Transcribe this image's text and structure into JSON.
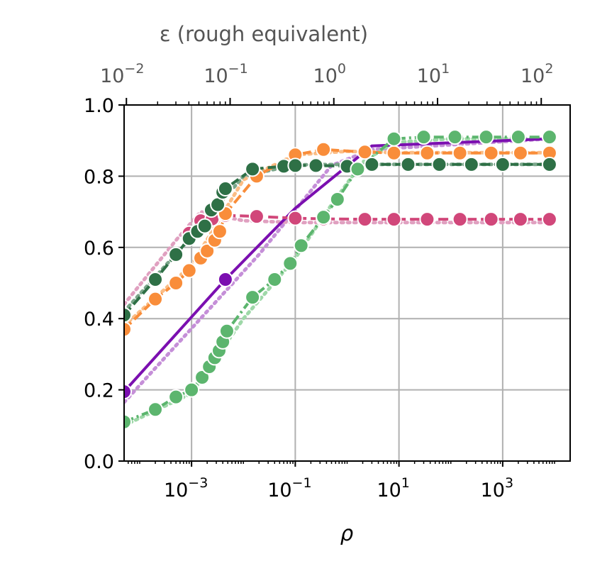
{
  "chart_data": {
    "type": "line",
    "xscale": "log",
    "xlabel": "ρ",
    "xlim": [
      5e-05,
      20000
    ],
    "x_ticks": [
      {
        "value": 0.001,
        "base": "10",
        "exp": "−3"
      },
      {
        "value": 0.1,
        "base": "10",
        "exp": "−1"
      },
      {
        "value": 10,
        "base": "10",
        "exp": "1"
      },
      {
        "value": 1000,
        "base": "10",
        "exp": "3"
      }
    ],
    "ylabel": "",
    "ylim": [
      0.0,
      1.0
    ],
    "y_ticks": [
      "0.0",
      "0.2",
      "0.4",
      "0.6",
      "0.8",
      "1.0"
    ],
    "grid": true,
    "top_axis": {
      "label": "ε (rough equivalent)",
      "xscale": "log",
      "ticks": [
        {
          "value": 0.01,
          "base": "10",
          "exp": "−2"
        },
        {
          "value": 0.1,
          "base": "10",
          "exp": "−1"
        },
        {
          "value": 1,
          "base": "10",
          "exp": "0"
        },
        {
          "value": 10,
          "base": "10",
          "exp": "1"
        },
        {
          "value": 100,
          "base": "10",
          "exp": "2"
        }
      ],
      "xlim": [
        0.0095,
        190
      ]
    },
    "series": [
      {
        "color": "#7b0fb0",
        "dash": "solid",
        "x": [
          5e-05,
          0.0045,
          0.1,
          3.0,
          8000
        ],
        "y": [
          0.195,
          0.51,
          0.71,
          0.885,
          0.905
        ],
        "marker_x": [
          5e-05,
          0.0045
        ],
        "marker_y": [
          0.195,
          0.51
        ],
        "ref_x": [
          5e-05,
          0.02,
          0.5,
          3.0,
          8000
        ],
        "ref_y": [
          0.165,
          0.58,
          0.83,
          0.875,
          0.905
        ],
        "ref_color": "#c58fd8"
      },
      {
        "color": "#d1477a",
        "dash": "dashed",
        "x": [
          0.0009,
          0.0015,
          0.0025,
          0.0045,
          0.018,
          0.1,
          0.35,
          2.2,
          8,
          35,
          150,
          600,
          2200,
          8000
        ],
        "y": [
          0.64,
          0.675,
          0.68,
          0.69,
          0.687,
          0.682,
          0.68,
          0.679,
          0.679,
          0.679,
          0.679,
          0.679,
          0.679,
          0.679
        ],
        "ref_x": [
          5e-05,
          0.0005,
          0.0015,
          0.01,
          0.1,
          1,
          10,
          100,
          1000,
          8000
        ],
        "ref_y": [
          0.44,
          0.62,
          0.7,
          0.675,
          0.67,
          0.67,
          0.67,
          0.67,
          0.67,
          0.67
        ],
        "ref_color": "#e0a0c0"
      },
      {
        "color": "#f98d3a",
        "dash": "dashed",
        "x": [
          5e-05,
          0.0002,
          0.0005,
          0.0009,
          0.0015,
          0.002,
          0.0028,
          0.0035,
          0.0045,
          0.018,
          0.1,
          0.35,
          2.2,
          8,
          35,
          150,
          600,
          2200,
          8000
        ],
        "y": [
          0.37,
          0.455,
          0.5,
          0.535,
          0.57,
          0.59,
          0.62,
          0.645,
          0.695,
          0.8,
          0.86,
          0.875,
          0.868,
          0.865,
          0.865,
          0.865,
          0.865,
          0.865,
          0.865
        ],
        "ref_x": [
          5e-05,
          0.001,
          0.01,
          0.1,
          1,
          10,
          100,
          1000,
          8000
        ],
        "ref_y": [
          0.38,
          0.55,
          0.79,
          0.86,
          0.87,
          0.866,
          0.866,
          0.866,
          0.866
        ],
        "ref_color": "#fbbd85"
      },
      {
        "color": "#2e7046",
        "dash": "dashed",
        "x": [
          5e-05,
          0.0002,
          0.0005,
          0.0009,
          0.0013,
          0.0018,
          0.0024,
          0.0032,
          0.004,
          0.0045,
          0.015,
          0.06,
          0.1,
          0.25,
          1.0,
          3.0,
          15,
          60,
          250,
          1000,
          8000
        ],
        "y": [
          0.41,
          0.51,
          0.58,
          0.625,
          0.645,
          0.66,
          0.705,
          0.72,
          0.755,
          0.765,
          0.82,
          0.828,
          0.83,
          0.83,
          0.828,
          0.833,
          0.833,
          0.833,
          0.833,
          0.833,
          0.833
        ],
        "ref_x": [
          5e-05,
          0.001,
          0.01,
          0.1,
          1,
          10,
          100,
          1000,
          8000
        ],
        "ref_y": [
          0.42,
          0.63,
          0.8,
          0.832,
          0.833,
          0.833,
          0.833,
          0.833,
          0.833
        ],
        "ref_color": "#7aa68a"
      },
      {
        "color": "#5cb56e",
        "dash": "dashdot",
        "x": [
          5e-05,
          0.0002,
          0.0005,
          0.001,
          0.0016,
          0.0022,
          0.0028,
          0.0034,
          0.004,
          0.0048,
          0.015,
          0.04,
          0.08,
          0.13,
          0.35,
          0.65,
          1.6,
          8,
          30,
          120,
          480,
          2000,
          8000
        ],
        "y": [
          0.11,
          0.145,
          0.18,
          0.2,
          0.235,
          0.265,
          0.29,
          0.31,
          0.335,
          0.365,
          0.46,
          0.51,
          0.555,
          0.605,
          0.685,
          0.735,
          0.82,
          0.905,
          0.91,
          0.91,
          0.91,
          0.91,
          0.91
        ],
        "ref_x": [
          5e-05,
          0.001,
          0.01,
          0.1,
          0.5,
          2,
          8,
          100,
          1000,
          8000
        ],
        "ref_y": [
          0.1,
          0.19,
          0.4,
          0.57,
          0.72,
          0.84,
          0.895,
          0.905,
          0.905,
          0.905
        ],
        "ref_color": "#9ed8a8"
      }
    ]
  }
}
